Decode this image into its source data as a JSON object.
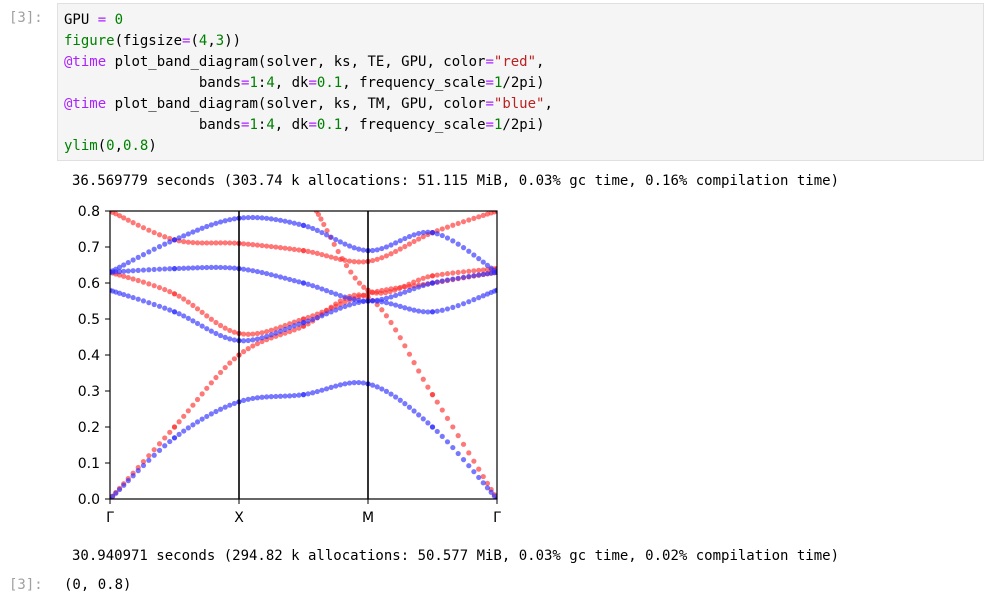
{
  "cell": {
    "in_prompt": "[3]:",
    "out_prompt": "[3]:",
    "code_lines": [
      "GPU = 0",
      "figure(figsize=(4,3))",
      "@time plot_band_diagram(solver, ks, TE, GPU, color=\"red\",",
      "                bands=1:4, dk=0.1, frequency_scale=1/2pi)",
      "@time plot_band_diagram(solver, ks, TM, GPU, color=\"blue\",",
      "                bands=1:4, dk=0.1, frequency_scale=1/2pi)",
      "ylim(0,0.8)"
    ],
    "timing_1": "36.569779 seconds (303.74 k allocations: 51.115 MiB, 0.03% gc time, 0.16% compilation time)",
    "timing_2": "30.940971 seconds (294.82 k allocations: 50.577 MiB, 0.03% gc time, 0.02% compilation time)",
    "result": "(0, 0.8)"
  },
  "colors": {
    "te": "#ff3030",
    "tm": "#3030ff"
  },
  "chart_data": {
    "type": "scatter",
    "ylim": [
      0,
      0.8
    ],
    "yticks": [
      "0.0",
      "0.1",
      "0.2",
      "0.3",
      "0.4",
      "0.5",
      "0.6",
      "0.7",
      "0.8"
    ],
    "xticks": [
      "Γ",
      "X",
      "M",
      "Γ"
    ],
    "x_range": [
      0,
      3
    ],
    "series": [
      {
        "color": "red",
        "points": [
          [
            0,
            0.0
          ],
          [
            0.5,
            0.2
          ],
          [
            1,
            0.4
          ],
          [
            1.5,
            0.48
          ],
          [
            2,
            0.56
          ],
          [
            2.5,
            0.29
          ],
          [
            3,
            0.0
          ]
        ]
      },
      {
        "color": "red",
        "points": [
          [
            0,
            0.63
          ],
          [
            0.5,
            0.57
          ],
          [
            1,
            0.46
          ],
          [
            1.5,
            0.5
          ],
          [
            2,
            0.57
          ],
          [
            2.5,
            0.6
          ],
          [
            3,
            0.63
          ]
        ]
      },
      {
        "color": "red",
        "points": [
          [
            0,
            0.8
          ],
          [
            0.5,
            0.72
          ],
          [
            1,
            0.71
          ],
          [
            1.5,
            0.69
          ],
          [
            2,
            0.66
          ],
          [
            2.5,
            0.74
          ],
          [
            3,
            0.8
          ]
        ]
      },
      {
        "color": "red",
        "points": [
          [
            1.6,
            0.8
          ],
          [
            2,
            0.58
          ],
          [
            2.5,
            0.62
          ],
          [
            3,
            0.64
          ]
        ]
      },
      {
        "color": "blue",
        "points": [
          [
            0,
            0.0
          ],
          [
            0.5,
            0.17
          ],
          [
            1,
            0.27
          ],
          [
            1.5,
            0.29
          ],
          [
            2,
            0.32
          ],
          [
            2.5,
            0.2
          ],
          [
            3,
            0.0
          ]
        ]
      },
      {
        "color": "blue",
        "points": [
          [
            0,
            0.58
          ],
          [
            0.5,
            0.52
          ],
          [
            1,
            0.44
          ],
          [
            1.5,
            0.49
          ],
          [
            2,
            0.55
          ],
          [
            2.5,
            0.52
          ],
          [
            3,
            0.58
          ]
        ]
      },
      {
        "color": "blue",
        "points": [
          [
            0,
            0.63
          ],
          [
            0.5,
            0.64
          ],
          [
            1,
            0.64
          ],
          [
            1.5,
            0.6
          ],
          [
            2,
            0.55
          ],
          [
            2.5,
            0.6
          ],
          [
            3,
            0.63
          ]
        ]
      },
      {
        "color": "blue",
        "points": [
          [
            0,
            0.63
          ],
          [
            0.5,
            0.72
          ],
          [
            1,
            0.78
          ],
          [
            1.5,
            0.76
          ],
          [
            2,
            0.69
          ],
          [
            2.5,
            0.74
          ],
          [
            3,
            0.63
          ]
        ]
      }
    ]
  }
}
